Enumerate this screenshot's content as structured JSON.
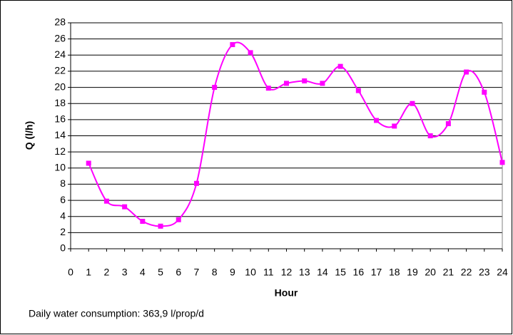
{
  "chart_data": {
    "type": "line",
    "x_label": "Hour",
    "y_label": "Q (l/h)",
    "annotation": "Daily water consumption: 363,9 l/prop/d",
    "x": [
      1,
      2,
      3,
      4,
      5,
      6,
      7,
      8,
      9,
      10,
      11,
      12,
      13,
      14,
      15,
      16,
      17,
      18,
      19,
      20,
      21,
      22,
      23,
      24
    ],
    "series": [
      {
        "color": "#ff00ff",
        "values": [
          10.6,
          5.9,
          5.2,
          3.4,
          2.8,
          3.6,
          8.1,
          20.0,
          25.3,
          24.3,
          19.9,
          20.5,
          20.8,
          20.5,
          22.6,
          19.6,
          15.9,
          15.2,
          18.0,
          14.0,
          15.5,
          21.9,
          19.4,
          10.7
        ]
      }
    ],
    "xlim": [
      0,
      24
    ],
    "xticks": [
      0,
      1,
      2,
      3,
      4,
      5,
      6,
      7,
      8,
      9,
      10,
      11,
      12,
      13,
      14,
      15,
      16,
      17,
      18,
      19,
      20,
      21,
      22,
      23,
      24
    ],
    "ylim": [
      0,
      28
    ],
    "yticks": [
      0,
      2,
      4,
      6,
      8,
      10,
      12,
      14,
      16,
      18,
      20,
      22,
      24,
      26,
      28
    ],
    "grid": true
  }
}
